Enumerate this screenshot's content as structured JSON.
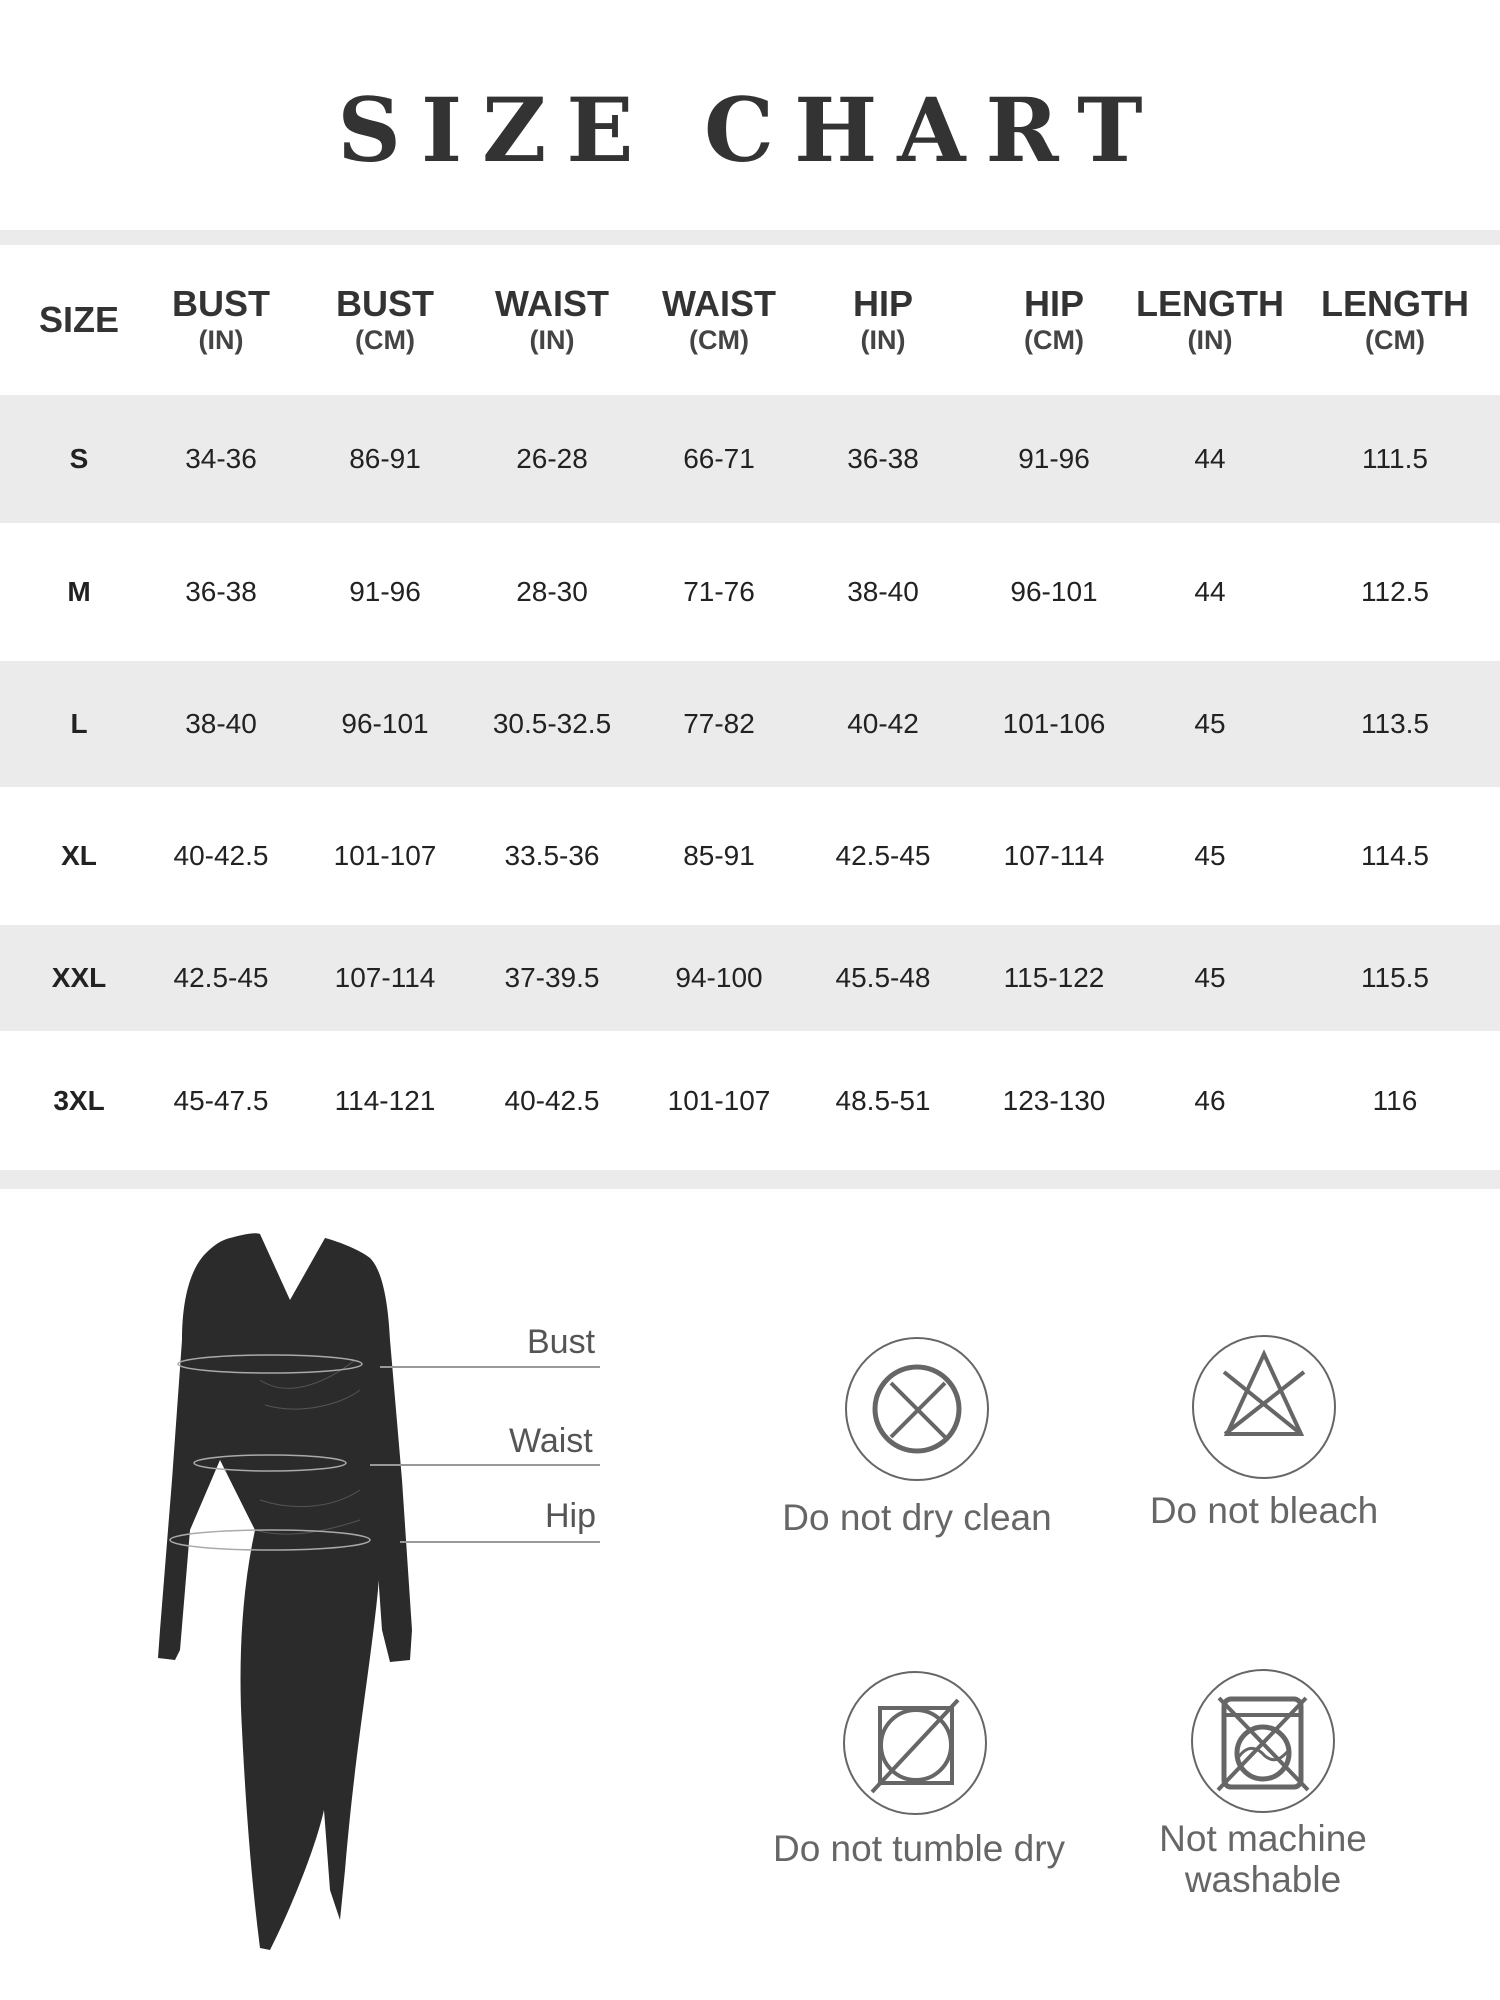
{
  "title": "SIZE CHART",
  "table": {
    "headers": [
      {
        "main": "SIZE",
        "sub": ""
      },
      {
        "main": "BUST",
        "sub": "(IN)"
      },
      {
        "main": "BUST",
        "sub": "(CM)"
      },
      {
        "main": "WAIST",
        "sub": "(IN)"
      },
      {
        "main": "WAIST",
        "sub": "(CM)"
      },
      {
        "main": "HIP",
        "sub": "(IN)"
      },
      {
        "main": "HIP",
        "sub": "(CM)"
      },
      {
        "main": "LENGTH",
        "sub": "(IN)"
      },
      {
        "main": "LENGTH",
        "sub": "(CM)"
      }
    ],
    "rows": [
      [
        "S",
        "34-36",
        "86-91",
        "26-28",
        "66-71",
        "36-38",
        "91-96",
        "44",
        "111.5"
      ],
      [
        "M",
        "36-38",
        "91-96",
        "28-30",
        "71-76",
        "38-40",
        "96-101",
        "44",
        "112.5"
      ],
      [
        "L",
        "38-40",
        "96-101",
        "30.5-32.5",
        "77-82",
        "40-42",
        "101-106",
        "45",
        "113.5"
      ],
      [
        "XL",
        "40-42.5",
        "101-107",
        "33.5-36",
        "85-91",
        "42.5-45",
        "107-114",
        "45",
        "114.5"
      ],
      [
        "XXL",
        "42.5-45",
        "107-114",
        "37-39.5",
        "94-100",
        "45.5-48",
        "115-122",
        "45",
        "115.5"
      ],
      [
        "3XL",
        "45-47.5",
        "114-121",
        "40-42.5",
        "101-107",
        "48.5-51",
        "123-130",
        "46",
        "116"
      ]
    ]
  },
  "measurements": {
    "bust": "Bust",
    "waist": "Waist",
    "hip": "Hip"
  },
  "care": [
    {
      "icon": "no-dry-clean-icon",
      "line1": "Do not dry clean",
      "line2": ""
    },
    {
      "icon": "no-bleach-icon",
      "line1": "Do not bleach",
      "line2": ""
    },
    {
      "icon": "no-tumble-dry-icon",
      "line1": "Do not tumble dry",
      "line2": ""
    },
    {
      "icon": "no-machine-wash-icon",
      "line1": "Not machine",
      "line2": "washable"
    }
  ],
  "colors": {
    "text": "#333333",
    "stripe": "#ebebeb",
    "icon": "#666666",
    "dress": "#2b2b2b"
  }
}
